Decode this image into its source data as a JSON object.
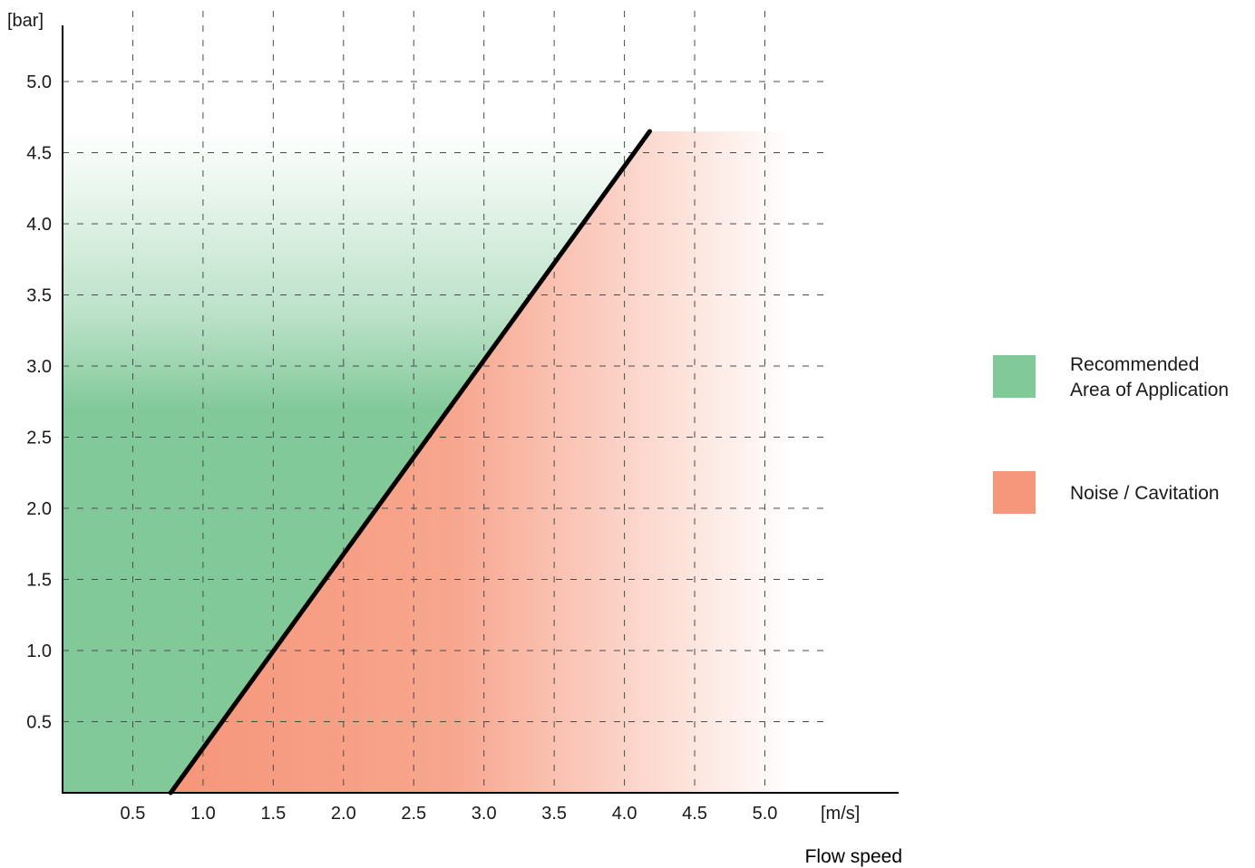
{
  "chart_data": {
    "type": "area",
    "title": "",
    "xlabel": "Flow speed",
    "x_unit": "[m/s]",
    "y_unit": "[bar]",
    "xlim": [
      0,
      5.5
    ],
    "ylim": [
      0,
      5.5
    ],
    "grid": true,
    "grid_style": "dashed",
    "x_ticks": [
      0.5,
      1.0,
      1.5,
      2.0,
      2.5,
      3.0,
      3.5,
      4.0,
      4.5,
      5.0
    ],
    "x_tick_labels": [
      "0.5",
      "1.0",
      "1.5",
      "2.0",
      "2.5",
      "3.0",
      "3.5",
      "4.0",
      "4.5",
      "5.0"
    ],
    "y_ticks": [
      0.5,
      1.0,
      1.5,
      2.0,
      2.5,
      3.0,
      3.5,
      4.0,
      4.5,
      5.0
    ],
    "y_tick_labels": [
      "0.5",
      "1.0",
      "1.5",
      "2.0",
      "2.5",
      "3.0",
      "3.5",
      "4.0",
      "4.5",
      "5.0"
    ],
    "boundary_line": {
      "x": [
        0.77,
        4.18
      ],
      "y": [
        0.0,
        4.65
      ]
    },
    "regions_top_pressure": 4.65,
    "regions_right_speed": 5.2,
    "legend_position": "right",
    "series": [
      {
        "name": "Recommended\nArea of Application",
        "lines": [
          "Recommended",
          "Area of Application"
        ],
        "color": "#82c99a"
      },
      {
        "name": "Noise / Cavitation",
        "lines": [
          "Noise / Cavitation"
        ],
        "color": "#f6967a"
      }
    ]
  }
}
